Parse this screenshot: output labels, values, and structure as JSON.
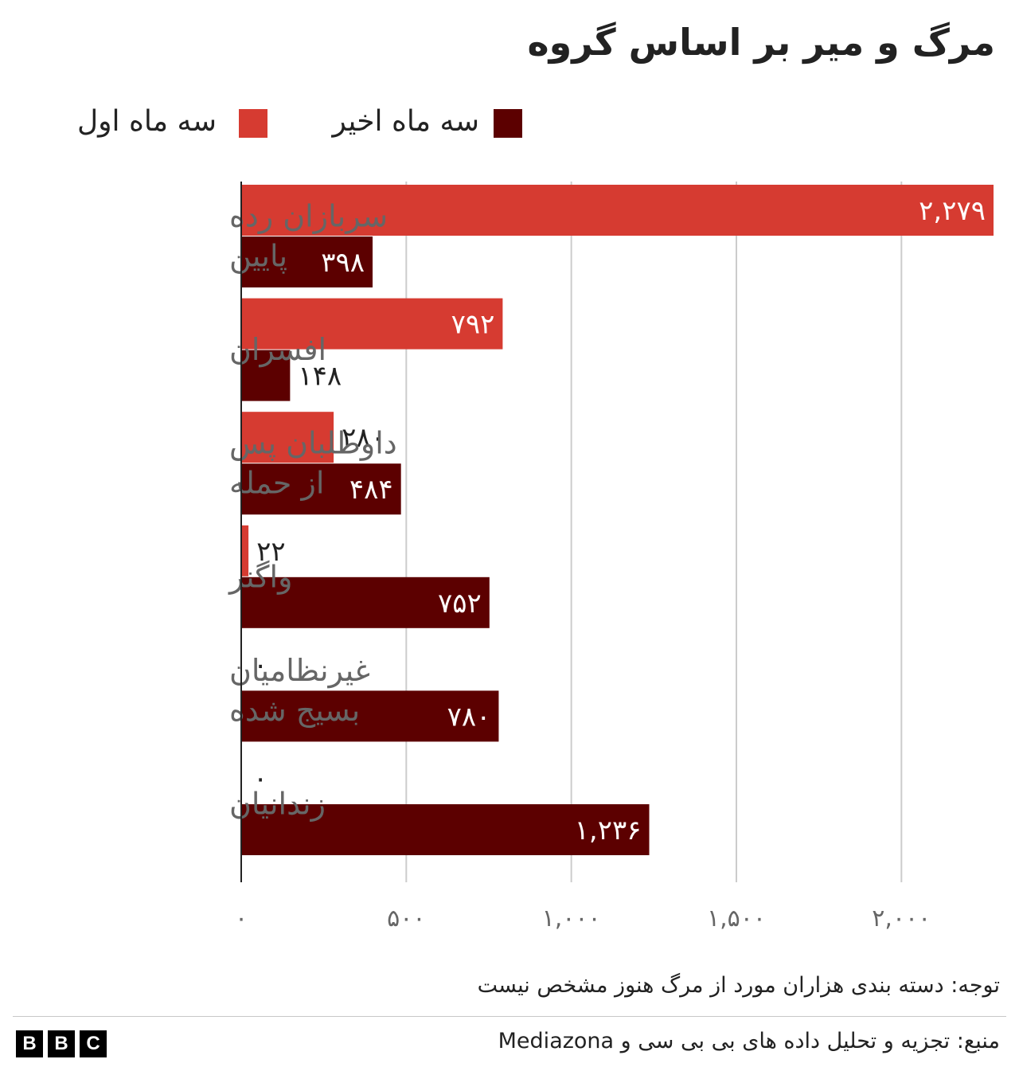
{
  "chart_data": {
    "type": "bar",
    "orientation": "horizontal",
    "title": "مرگ و میر بر اساس گروه",
    "categories": [
      [
        "سربازان رده",
        "پایین"
      ],
      [
        "افسران"
      ],
      [
        "داوطلبان پس",
        "از حمله"
      ],
      [
        "واگنر"
      ],
      [
        "غیرنظامیان",
        "بسیج شده"
      ],
      [
        "زندانیان"
      ]
    ],
    "series": [
      {
        "name": "سه ماه اول",
        "color": "#d63b31",
        "values": [
          2279,
          792,
          280,
          22,
          0,
          0
        ],
        "labels": [
          "۲,۲۷۹",
          "۷۹۲",
          "۲۸۰",
          "۲۲",
          "۰",
          "۰"
        ]
      },
      {
        "name": "سه ماه اخیر",
        "color": "#5c0000",
        "values": [
          398,
          148,
          484,
          752,
          780,
          1236
        ],
        "labels": [
          "۳۹۸",
          "۱۴۸",
          "۴۸۴",
          "۷۵۲",
          "۷۸۰",
          "۱,۲۳۶"
        ]
      }
    ],
    "xlim": [
      0,
      2279
    ],
    "ticks": [
      0,
      500,
      1000,
      1500,
      2000
    ],
    "tick_labels": [
      "۰",
      "۵۰۰",
      "۱,۰۰۰",
      "۱,۵۰۰",
      "۲,۰۰۰"
    ],
    "grid": true,
    "legend_position": "top"
  },
  "note": "توجه: دسته بندی هزاران مورد از مرگ هنوز مشخص نیست",
  "source": "منبع: تجزیه و تحلیل داده های بی بی سی و Mediazona",
  "logo": [
    "B",
    "B",
    "C"
  ]
}
